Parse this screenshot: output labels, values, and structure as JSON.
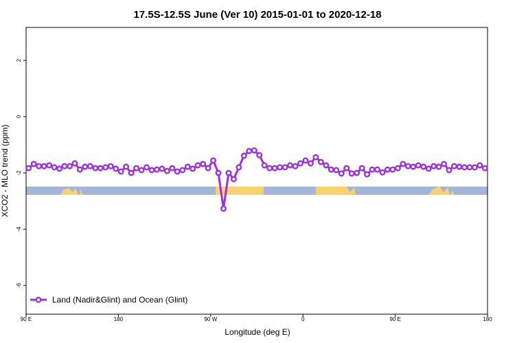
{
  "chart_data": {
    "type": "line",
    "title": "17.5S-12.5S June (Ver 10)   2015-01-01 to 2020-12-18",
    "x_label": "Longitude (deg E)",
    "y_label": "XCO2 - MLO trend (ppm)",
    "xlim": [
      90,
      540
    ],
    "ylim": [
      -7.02,
      3.17
    ],
    "xticks": [
      {
        "value": 90,
        "label": "90 E"
      },
      180,
      {
        "value": 270,
        "label": "90 W"
      },
      {
        "value": 360,
        "label": "0"
      },
      {
        "value": 450,
        "label": "90 E"
      },
      {
        "value": 540,
        "label": "180"
      }
    ],
    "yticks": [
      -6,
      -4,
      -2,
      0,
      2
    ],
    "legend": "bottom-left",
    "series": [
      {
        "name": "Land (Nadir&Glint) and Ocean (Glint)",
        "color": "#9b30e0",
        "x": [
          92.5,
          97.5,
          102.5,
          107.5,
          112.5,
          117.5,
          122.5,
          127.5,
          132.5,
          137.5,
          142.5,
          147.5,
          152.5,
          157.5,
          162.5,
          167.5,
          172.5,
          177.5,
          182.5,
          187.5,
          192.5,
          197.5,
          202.5,
          207.5,
          212.5,
          217.5,
          222.5,
          227.5,
          232.5,
          237.5,
          242.5,
          247.5,
          252.5,
          257.5,
          262.5,
          267.5,
          272.5,
          277.5,
          282.5,
          287.5,
          292.5,
          297.5,
          302.5,
          307.5,
          312.5,
          317.5,
          322.5,
          327.5,
          332.5,
          337.5,
          342.5,
          347.5,
          352.5,
          357.5,
          362.5,
          367.5,
          372.5,
          377.5,
          382.5,
          387.5,
          392.5,
          397.5,
          402.5,
          407.5,
          412.5,
          417.5,
          422.5,
          427.5,
          432.5,
          437.5,
          442.5,
          447.5,
          452.5,
          457.5,
          462.5,
          467.5,
          472.5,
          477.5,
          482.5,
          487.5,
          492.5,
          497.5,
          502.5,
          507.5,
          512.5,
          517.5,
          522.5,
          527.5,
          532.5,
          537.5
        ],
        "values": [
          -1.83,
          -1.68,
          -1.76,
          -1.76,
          -1.73,
          -1.8,
          -1.85,
          -1.76,
          -1.76,
          -1.66,
          -1.88,
          -1.78,
          -1.76,
          -1.83,
          -1.83,
          -1.8,
          -1.76,
          -1.85,
          -1.95,
          -1.78,
          -2.0,
          -1.83,
          -1.9,
          -1.8,
          -1.9,
          -1.88,
          -1.85,
          -1.93,
          -1.83,
          -1.95,
          -1.9,
          -1.78,
          -1.85,
          -1.73,
          -1.68,
          -1.83,
          -1.56,
          -2.0,
          -3.27,
          -2.0,
          -2.22,
          -1.8,
          -1.39,
          -1.22,
          -1.2,
          -1.37,
          -1.73,
          -1.83,
          -1.83,
          -1.8,
          -1.8,
          -1.73,
          -1.76,
          -1.66,
          -1.56,
          -1.66,
          -1.44,
          -1.61,
          -1.73,
          -1.88,
          -1.9,
          -2.02,
          -1.83,
          -2.02,
          -2.0,
          -1.83,
          -2.05,
          -1.88,
          -1.88,
          -1.98,
          -1.88,
          -1.88,
          -1.83,
          -1.68,
          -1.76,
          -1.78,
          -1.73,
          -1.78,
          -1.85,
          -1.76,
          -1.78,
          -1.68,
          -1.9,
          -1.76,
          -1.78,
          -1.8,
          -1.8,
          -1.8,
          -1.73,
          -1.83
        ]
      }
    ]
  }
}
